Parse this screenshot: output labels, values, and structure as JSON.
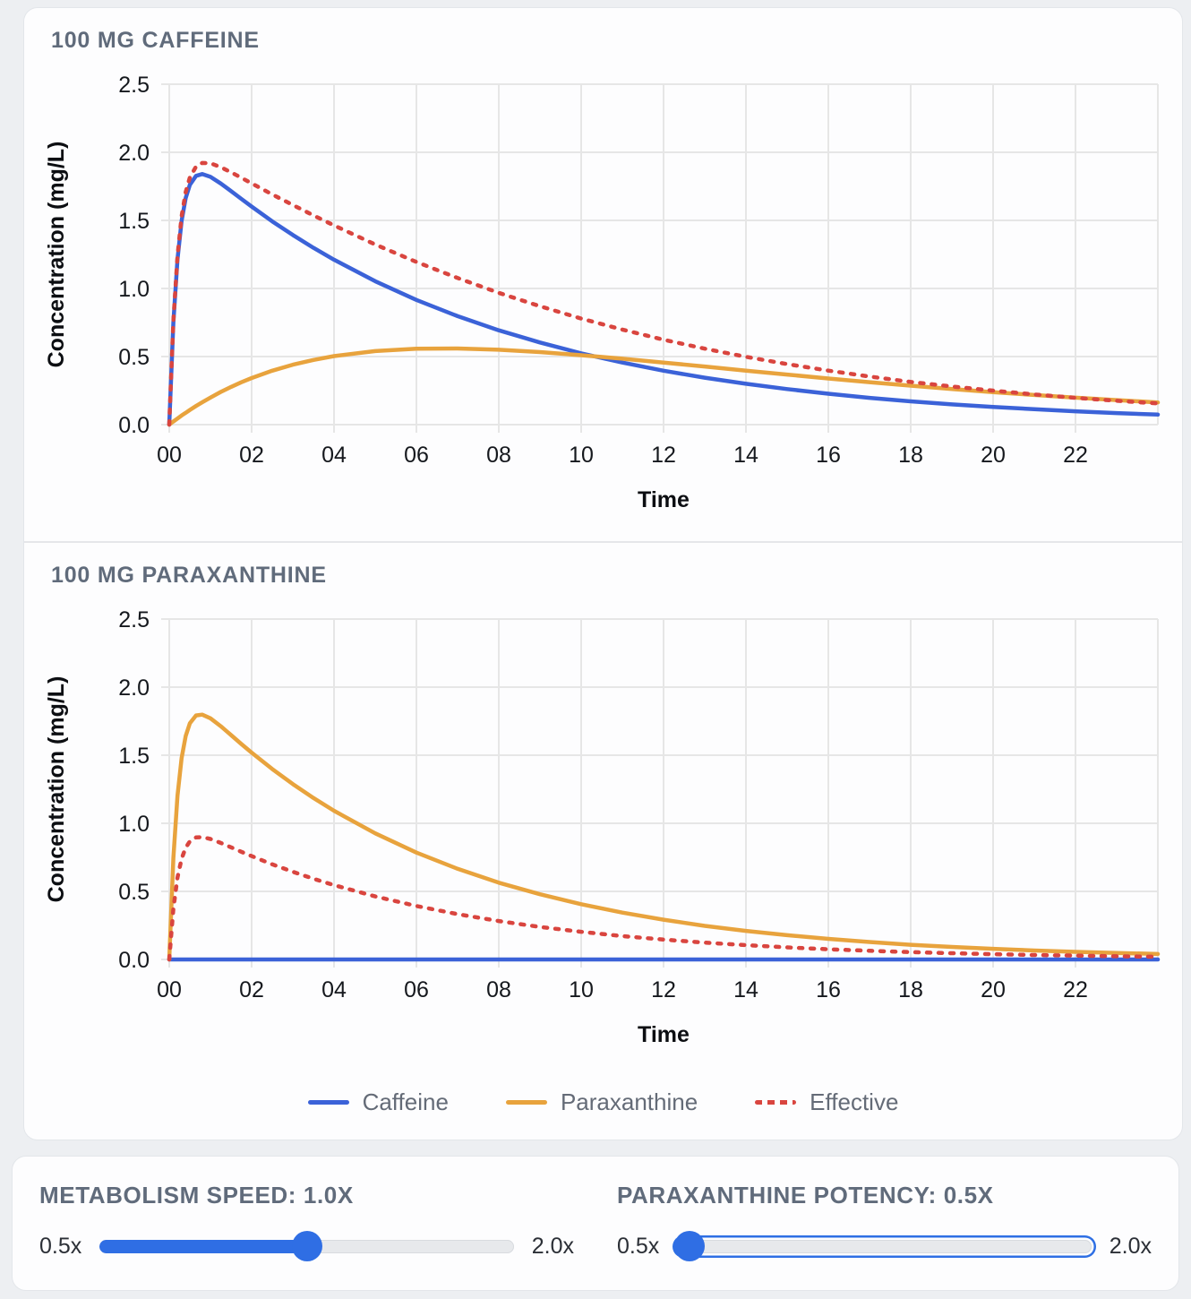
{
  "colors": {
    "caffeine": "#3b62d8",
    "paraxanthine": "#e8a33d",
    "effective": "#d9453f",
    "accent_blue": "#2f6ee4",
    "grid": "#e6e6e6",
    "tick_text": "#15181d",
    "axis_title_text": "#0c0e12",
    "heading_text": "#606b7b"
  },
  "chart_data": [
    {
      "type": "line",
      "title": "100 MG CAFFEINE",
      "xlabel": "Time",
      "ylabel": "Concentration (mg/L)",
      "xlim": [
        0,
        24
      ],
      "ylim": [
        0,
        2.5
      ],
      "grid": true,
      "x_tick_labels": [
        "00",
        "02",
        "04",
        "06",
        "08",
        "10",
        "12",
        "14",
        "16",
        "18",
        "20",
        "22"
      ],
      "x_tick_values": [
        0,
        2,
        4,
        6,
        8,
        10,
        12,
        14,
        16,
        18,
        20,
        22
      ],
      "y_tick_labels": [
        "0.0",
        "0.5",
        "1.0",
        "1.5",
        "2.0",
        "2.5"
      ],
      "y_tick_values": [
        0,
        0.5,
        1,
        1.5,
        2,
        2.5
      ],
      "x": [
        0,
        0.1,
        0.2,
        0.3,
        0.4,
        0.5,
        0.65,
        0.8,
        1,
        1.25,
        1.5,
        1.75,
        2,
        2.5,
        3,
        3.5,
        4,
        5,
        6,
        7,
        8,
        9,
        10,
        11,
        12,
        13,
        14,
        15,
        16,
        17,
        18,
        19,
        20,
        21,
        22,
        23,
        24
      ],
      "series": [
        {
          "name": "Caffeine",
          "color": "#3b62d8",
          "style": "solid",
          "values": [
            0,
            0.751,
            1.214,
            1.497,
            1.665,
            1.761,
            1.827,
            1.84,
            1.82,
            1.771,
            1.715,
            1.658,
            1.601,
            1.493,
            1.393,
            1.299,
            1.211,
            1.053,
            0.916,
            0.797,
            0.693,
            0.603,
            0.524,
            0.456,
            0.396,
            0.345,
            0.3,
            0.261,
            0.227,
            0.197,
            0.171,
            0.149,
            0.13,
            0.113,
            0.098,
            0.085,
            0.074
          ]
        },
        {
          "name": "Paraxanthine",
          "color": "#e8a33d",
          "style": "solid",
          "values": [
            0,
            0.023,
            0.045,
            0.067,
            0.087,
            0.108,
            0.137,
            0.164,
            0.199,
            0.24,
            0.277,
            0.311,
            0.342,
            0.396,
            0.44,
            0.475,
            0.503,
            0.54,
            0.557,
            0.559,
            0.55,
            0.533,
            0.51,
            0.484,
            0.456,
            0.427,
            0.397,
            0.368,
            0.339,
            0.312,
            0.286,
            0.262,
            0.239,
            0.218,
            0.198,
            0.18,
            0.163
          ]
        },
        {
          "name": "Effective",
          "color": "#d9453f",
          "style": "dashed",
          "values": [
            0,
            0.762,
            1.237,
            1.53,
            1.709,
            1.815,
            1.895,
            1.922,
            1.92,
            1.891,
            1.853,
            1.813,
            1.772,
            1.691,
            1.613,
            1.537,
            1.463,
            1.323,
            1.195,
            1.077,
            0.968,
            0.87,
            0.779,
            0.698,
            0.624,
            0.558,
            0.498,
            0.445,
            0.397,
            0.353,
            0.314,
            0.28,
            0.25,
            0.222,
            0.197,
            0.175,
            0.156
          ]
        }
      ]
    },
    {
      "type": "line",
      "title": "100 MG PARAXANTHINE",
      "xlabel": "Time",
      "ylabel": "Concentration (mg/L)",
      "xlim": [
        0,
        24
      ],
      "ylim": [
        0,
        2.5
      ],
      "grid": true,
      "x_tick_labels": [
        "00",
        "02",
        "04",
        "06",
        "08",
        "10",
        "12",
        "14",
        "16",
        "18",
        "20",
        "22"
      ],
      "x_tick_values": [
        0,
        2,
        4,
        6,
        8,
        10,
        12,
        14,
        16,
        18,
        20,
        22
      ],
      "y_tick_labels": [
        "0.0",
        "0.5",
        "1.0",
        "1.5",
        "2.0",
        "2.5"
      ],
      "y_tick_values": [
        0,
        0.5,
        1,
        1.5,
        2,
        2.5
      ],
      "x": [
        0,
        0.1,
        0.2,
        0.3,
        0.4,
        0.5,
        0.65,
        0.8,
        1,
        1.25,
        1.5,
        1.75,
        2,
        2.5,
        3,
        3.5,
        4,
        5,
        6,
        7,
        8,
        9,
        10,
        11,
        12,
        13,
        14,
        15,
        16,
        17,
        18,
        19,
        20,
        21,
        22,
        23,
        24
      ],
      "series": [
        {
          "name": "Caffeine",
          "color": "#3b62d8",
          "style": "solid",
          "values": [
            0,
            0,
            0,
            0,
            0,
            0,
            0,
            0,
            0,
            0,
            0,
            0,
            0,
            0,
            0,
            0,
            0,
            0,
            0,
            0,
            0,
            0,
            0,
            0,
            0,
            0,
            0,
            0,
            0,
            0,
            0,
            0,
            0,
            0,
            0,
            0,
            0
          ]
        },
        {
          "name": "Paraxanthine",
          "color": "#e8a33d",
          "style": "solid",
          "values": [
            0,
            0.745,
            1.202,
            1.479,
            1.642,
            1.734,
            1.792,
            1.798,
            1.771,
            1.713,
            1.648,
            1.582,
            1.519,
            1.399,
            1.288,
            1.186,
            1.092,
            0.926,
            0.785,
            0.666,
            0.564,
            0.479,
            0.406,
            0.344,
            0.292,
            0.247,
            0.21,
            0.178,
            0.151,
            0.128,
            0.108,
            0.092,
            0.078,
            0.066,
            0.056,
            0.048,
            0.04
          ]
        },
        {
          "name": "Effective",
          "color": "#d9453f",
          "style": "dashed",
          "values": [
            0,
            0.372,
            0.601,
            0.74,
            0.821,
            0.867,
            0.896,
            0.899,
            0.885,
            0.856,
            0.824,
            0.791,
            0.759,
            0.699,
            0.644,
            0.593,
            0.546,
            0.463,
            0.393,
            0.333,
            0.282,
            0.239,
            0.203,
            0.172,
            0.146,
            0.124,
            0.105,
            0.089,
            0.075,
            0.064,
            0.054,
            0.046,
            0.039,
            0.033,
            0.028,
            0.024,
            0.02
          ]
        }
      ]
    }
  ],
  "legend": {
    "items": [
      {
        "label": "Caffeine",
        "color": "#3b62d8",
        "style": "solid"
      },
      {
        "label": "Paraxanthine",
        "color": "#e8a33d",
        "style": "solid"
      },
      {
        "label": "Effective",
        "color": "#d9453f",
        "style": "dashed"
      }
    ]
  },
  "controls": {
    "metabolism": {
      "heading": "METABOLISM SPEED: 1.0X",
      "value": "1.0x",
      "min_label": "0.5x",
      "max_label": "2.0x",
      "thumb_percent": 50,
      "focused": false
    },
    "potency": {
      "heading": "PARAXANTHINE POTENCY: 0.5X",
      "value": "0.5x",
      "min_label": "0.5x",
      "max_label": "2.0x",
      "thumb_percent": 3,
      "focused": true
    }
  }
}
